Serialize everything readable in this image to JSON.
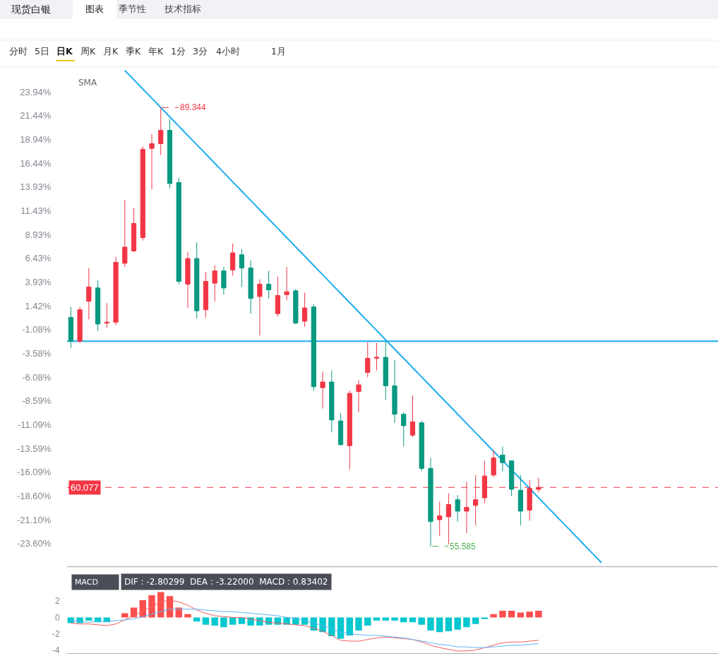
{
  "chart_data": [
    {
      "type": "candlestick",
      "title": "现货白银",
      "categories": [
        null,
        null,
        null,
        null,
        null,
        null,
        null,
        null,
        null,
        null,
        null,
        null,
        null,
        null,
        null,
        null,
        null,
        null,
        null,
        null,
        null,
        null,
        null,
        null,
        null,
        null,
        null,
        null,
        null,
        null,
        null,
        null,
        null,
        null,
        null,
        null,
        null,
        null,
        null,
        null,
        null,
        null,
        null,
        null,
        null,
        null,
        null,
        null,
        null,
        null,
        null,
        null,
        null,
        null,
        null,
        null,
        null,
        null,
        null,
        null
      ],
      "ohlc": [
        [
          0.2,
          1.3,
          -3.0,
          -2.3
        ],
        [
          -2.3,
          1.3,
          -2.5,
          1.0
        ],
        [
          1.9,
          5.4,
          0.0,
          3.4
        ],
        [
          3.3,
          4.1,
          -1.2,
          -0.5
        ],
        [
          -0.4,
          1.7,
          -0.9,
          -0.3
        ],
        [
          -0.3,
          6.6,
          -0.6,
          6.0
        ],
        [
          5.9,
          12.6,
          5.5,
          7.6
        ],
        [
          7.2,
          11.7,
          7.1,
          10.1
        ],
        [
          8.6,
          18.2,
          8.3,
          17.9
        ],
        [
          18.0,
          19.5,
          13.7,
          18.5
        ],
        [
          18.5,
          22.3,
          17.3,
          19.9
        ],
        [
          19.9,
          21.1,
          13.8,
          14.3
        ],
        [
          14.4,
          14.9,
          3.7,
          4.0
        ],
        [
          3.7,
          7.1,
          1.2,
          6.4
        ],
        [
          6.4,
          8.1,
          0.1,
          0.9
        ],
        [
          1.0,
          5.0,
          0.2,
          4.0
        ],
        [
          3.8,
          5.7,
          1.9,
          5.1
        ],
        [
          5.1,
          5.5,
          2.6,
          3.3
        ],
        [
          5.2,
          8.0,
          4.6,
          7.0
        ],
        [
          6.8,
          7.4,
          3.4,
          5.4
        ],
        [
          5.4,
          6.2,
          0.6,
          2.2
        ],
        [
          2.4,
          4.2,
          -1.7,
          3.7
        ],
        [
          3.7,
          5.1,
          2.2,
          3.1
        ],
        [
          0.6,
          4.5,
          0.3,
          2.5
        ],
        [
          2.6,
          5.5,
          2.0,
          2.9
        ],
        [
          3.0,
          3.2,
          -0.5,
          -0.4
        ],
        [
          -0.2,
          2.8,
          -0.8,
          1.2
        ],
        [
          1.3,
          1.6,
          -7.5,
          -7.1
        ],
        [
          -7.2,
          -5.5,
          -9.4,
          -6.6
        ],
        [
          -6.6,
          -5.4,
          -11.9,
          -10.6
        ],
        [
          -10.7,
          -9.9,
          -13.3,
          -13.2
        ],
        [
          -13.3,
          -7.5,
          -15.8,
          -7.8
        ],
        [
          -7.6,
          -6.4,
          -9.8,
          -6.9
        ],
        [
          -5.6,
          -2.4,
          -6.1,
          -4.1
        ],
        [
          -4.1,
          -2.5,
          -5.4,
          -4.0
        ],
        [
          -4.0,
          -2.3,
          -8.5,
          -7.0
        ],
        [
          -7.0,
          -4.3,
          -10.9,
          -10.0
        ],
        [
          -10.0,
          -9.8,
          -13.4,
          -11.2
        ],
        [
          -12.2,
          -8.0,
          -12.4,
          -10.8
        ],
        [
          -10.9,
          -10.7,
          -16.0,
          -15.7
        ],
        [
          -15.7,
          -14.6,
          -23.9,
          -21.3
        ],
        [
          -21.1,
          -19.2,
          -22.8,
          -20.7
        ],
        [
          -20.8,
          -18.3,
          -23.7,
          -19.5
        ],
        [
          -19.0,
          -18.5,
          -21.3,
          -20.2
        ],
        [
          -20.2,
          -17.1,
          -22.5,
          -19.8
        ],
        [
          -19.6,
          -16.4,
          -21.7,
          -19.0
        ],
        [
          -18.8,
          -14.9,
          -19.4,
          -16.5
        ],
        [
          -16.4,
          -13.8,
          -16.6,
          -14.6
        ],
        [
          -14.3,
          -13.4,
          -16.0,
          -15.1
        ],
        [
          -14.9,
          -14.9,
          -18.6,
          -17.9
        ],
        [
          -18.0,
          -16.4,
          -21.7,
          -20.2
        ],
        [
          -20.1,
          -16.9,
          -21.2,
          -17.8
        ],
        [
          -17.9,
          -16.7,
          -18.2,
          -17.7
        ],
        null,
        null,
        null,
        null,
        null,
        null,
        null
      ],
      "colors": [
        "#089981",
        "#f23645",
        "#f23645",
        "#089981",
        "#f23645",
        "#f23645",
        "#f23645",
        "#f23645",
        "#f23645",
        "#f23645",
        "#f23645",
        "#089981",
        "#089981",
        "#f23645",
        "#089981",
        "#f23645",
        "#f23645",
        "#089981",
        "#f23645",
        "#089981",
        "#089981",
        "#f23645",
        "#089981",
        "#f23645",
        "#f23645",
        "#089981",
        "#f23645",
        "#089981",
        "#f23645",
        "#089981",
        "#089981",
        "#f23645",
        "#f23645",
        "#f23645",
        "#f23645",
        "#089981",
        "#089981",
        "#089981",
        "#f23645",
        "#089981",
        "#089981",
        "#f23645",
        "#f23645",
        "#089981",
        "#f23645",
        "#f23645",
        "#f23645",
        "#f23645",
        "#089981",
        "#089981",
        "#089981",
        "#f23645",
        "#f23645",
        null,
        null,
        null,
        null,
        null,
        null,
        null
      ],
      "series": [
        {
          "type": "line",
          "color": "#1cadf0",
          "values": [
            null,
            null,
            null,
            null,
            null,
            null,
            26.21,
            25.23,
            24.25,
            23.28,
            22.3,
            21.32,
            20.34,
            19.36,
            18.39,
            17.41,
            16.43,
            15.45,
            14.47,
            13.49,
            12.52,
            11.54,
            10.56,
            9.58,
            8.6,
            7.62,
            6.65,
            5.67,
            4.69,
            3.71,
            2.73,
            1.76,
            0.78,
            -0.2,
            -1.18,
            -2.16,
            -3.14,
            -4.11,
            -5.09,
            -6.07,
            -7.05,
            -8.03,
            -9.0,
            -9.98,
            -10.96,
            -11.94,
            -12.92,
            -13.9,
            -14.87,
            -15.85,
            -16.83,
            -17.81,
            -18.79,
            -19.77,
            -20.74,
            -21.72,
            -22.7,
            -23.68,
            -24.66,
            -25.63
          ]
        }
      ],
      "ref_lines": [
        {
          "axis": "y",
          "value": -2.3,
          "color": "#1cadf0",
          "line_style": "solid"
        },
        {
          "axis": "y",
          "value": -17.7,
          "color": "#f23645",
          "line_style": "dashed"
        }
      ],
      "ylim": [
        -26.1,
        26.5
      ],
      "yticks": [
        {
          "value": 23.94,
          "label": "23.94%"
        },
        {
          "value": 21.44,
          "label": "21.44%"
        },
        {
          "value": 18.94,
          "label": "18.94%"
        },
        {
          "value": 16.44,
          "label": "16.44%"
        },
        {
          "value": 13.93,
          "label": "13.93%"
        },
        {
          "value": 11.43,
          "label": "11.43%"
        },
        {
          "value": 8.93,
          "label": "8.93%"
        },
        {
          "value": 6.43,
          "label": "6.43%"
        },
        {
          "value": 3.93,
          "label": "3.93%"
        },
        {
          "value": 1.42,
          "label": "1.42%"
        },
        {
          "value": -1.08,
          "label": "-1.08%"
        },
        {
          "value": -3.58,
          "label": "-3.58%"
        },
        {
          "value": -6.08,
          "label": "-6.08%"
        },
        {
          "value": -8.59,
          "label": "-8.59%"
        },
        {
          "value": -11.09,
          "label": "-11.09%"
        },
        {
          "value": -13.59,
          "label": "-13.59%"
        },
        {
          "value": -16.09,
          "label": "-16.09%"
        },
        {
          "value": -18.6,
          "label": "-18.60%"
        },
        {
          "value": -21.1,
          "label": "-21.10%"
        },
        {
          "value": -23.6,
          "label": "-23.60%"
        }
      ],
      "tick_labels": "y",
      "annotations": [
        "图表",
        "季节性",
        "技术指标",
        "分时",
        "5日",
        "日K",
        "周K",
        "月K",
        "季K",
        "年K",
        "1分",
        "3分",
        "4小时",
        "1月",
        "SMA",
        "89.344",
        "55.585",
        "60.077"
      ]
    },
    {
      "type": "bar",
      "title": "MACD",
      "subtitle": "DIF : -2.80299  DEA : -3.22000  MACD : 0.83402",
      "categories": [
        null,
        null,
        null,
        null,
        null,
        null,
        null,
        null,
        null,
        null,
        null,
        null,
        null,
        null,
        null,
        null,
        null,
        null,
        null,
        null,
        null,
        null,
        null,
        null,
        null,
        null,
        null,
        null,
        null,
        null,
        null,
        null,
        null,
        null,
        null,
        null,
        null,
        null,
        null,
        null,
        null,
        null,
        null,
        null,
        null,
        null,
        null,
        null,
        null,
        null,
        null,
        null,
        null
      ],
      "series": [
        {
          "type": "bar",
          "colors": [
            "#05c8cf",
            "#05c8cf",
            "#05c8cf",
            "#05c8cf",
            "#05c8cf",
            "#05c8cf",
            "#fd4e4e",
            "#fd4e4e",
            "#fd4e4e",
            "#fd4e4e",
            "#fd4e4e",
            "#fd4e4e",
            "#fd4e4e",
            "#fd4e4e",
            "#05c8cf",
            "#05c8cf",
            "#05c8cf",
            "#05c8cf",
            "#05c8cf",
            "#05c8cf",
            "#05c8cf",
            "#05c8cf",
            "#05c8cf",
            "#05c8cf",
            "#05c8cf",
            "#05c8cf",
            "#05c8cf",
            "#05c8cf",
            "#05c8cf",
            "#05c8cf",
            "#05c8cf",
            "#05c8cf",
            "#05c8cf",
            "#05c8cf",
            "#05c8cf",
            "#05c8cf",
            "#05c8cf",
            "#05c8cf",
            "#05c8cf",
            "#05c8cf",
            "#05c8cf",
            "#05c8cf",
            "#05c8cf",
            "#05c8cf",
            "#05c8cf",
            "#05c8cf",
            "#05c8cf",
            "#fd4e4e",
            "#fd4e4e",
            "#fd4e4e",
            "#fd4e4e",
            "#fd4e4e",
            "#fd4e4e"
          ],
          "values": [
            -0.7,
            -0.7,
            -0.4,
            -0.6,
            -0.6,
            null,
            0.5,
            1.2,
            2.1,
            2.7,
            3.1,
            2.6,
            1.2,
            0.4,
            -0.5,
            -0.9,
            -1.0,
            -1.2,
            -0.9,
            -0.8,
            -1.0,
            -1.0,
            -0.9,
            -0.9,
            -0.9,
            -0.9,
            -0.9,
            -1.6,
            -1.8,
            -2.3,
            -2.6,
            -2.2,
            -1.6,
            -1.0,
            -0.4,
            -0.4,
            -0.4,
            -0.6,
            -0.6,
            -0.9,
            -1.6,
            -1.8,
            -1.7,
            -1.5,
            -1.2,
            -0.8,
            -0.2,
            0.4,
            0.8,
            0.8,
            0.6,
            0.7,
            0.8
          ]
        },
        {
          "type": "line",
          "color": "#f25f5c",
          "values": [
            -0.7,
            -0.8,
            -0.8,
            -0.9,
            -1.0,
            -0.8,
            -0.3,
            0.2,
            0.8,
            1.3,
            1.9,
            2.1,
            1.9,
            1.5,
            0.9,
            0.5,
            0.2,
            0.1,
            0.0,
            0.0,
            -0.2,
            -0.4,
            -0.6,
            -0.7,
            -0.8,
            -0.9,
            -1.0,
            -1.3,
            -1.7,
            -2.2,
            -2.8,
            -2.9,
            -2.9,
            -2.7,
            -2.5,
            -2.4,
            -2.5,
            -2.6,
            -2.7,
            -3.0,
            -3.4,
            -3.7,
            -3.9,
            -4.1,
            -4.1,
            -4.0,
            -3.7,
            -3.4,
            -3.1,
            -3.0,
            -3.0,
            -2.9,
            -2.8
          ]
        },
        {
          "type": "line",
          "color": "#5cb3f5",
          "values": [
            -0.4,
            -0.5,
            -0.6,
            -0.5,
            -0.5,
            -0.4,
            -0.3,
            -0.2,
            0.1,
            0.4,
            0.7,
            1.0,
            1.0,
            1.0,
            1.0,
            0.9,
            0.8,
            0.7,
            0.7,
            0.6,
            0.5,
            0.4,
            0.3,
            0.2,
            0.0,
            -0.1,
            -0.4,
            -0.7,
            -1.0,
            -1.4,
            -1.8,
            -2.0,
            -2.1,
            -2.2,
            -2.2,
            -2.3,
            -2.4,
            -2.5,
            -2.7,
            -2.9,
            -3.1,
            -3.3,
            -3.4,
            -3.6,
            -3.6,
            -3.7,
            -3.7,
            -3.6,
            -3.5,
            -3.4,
            -3.4,
            -3.3,
            -3.2
          ]
        }
      ],
      "ylim": [
        -4.45,
        3.55
      ],
      "yticks": [
        -4,
        -2,
        0,
        2
      ],
      "tick_labels": "y"
    }
  ]
}
